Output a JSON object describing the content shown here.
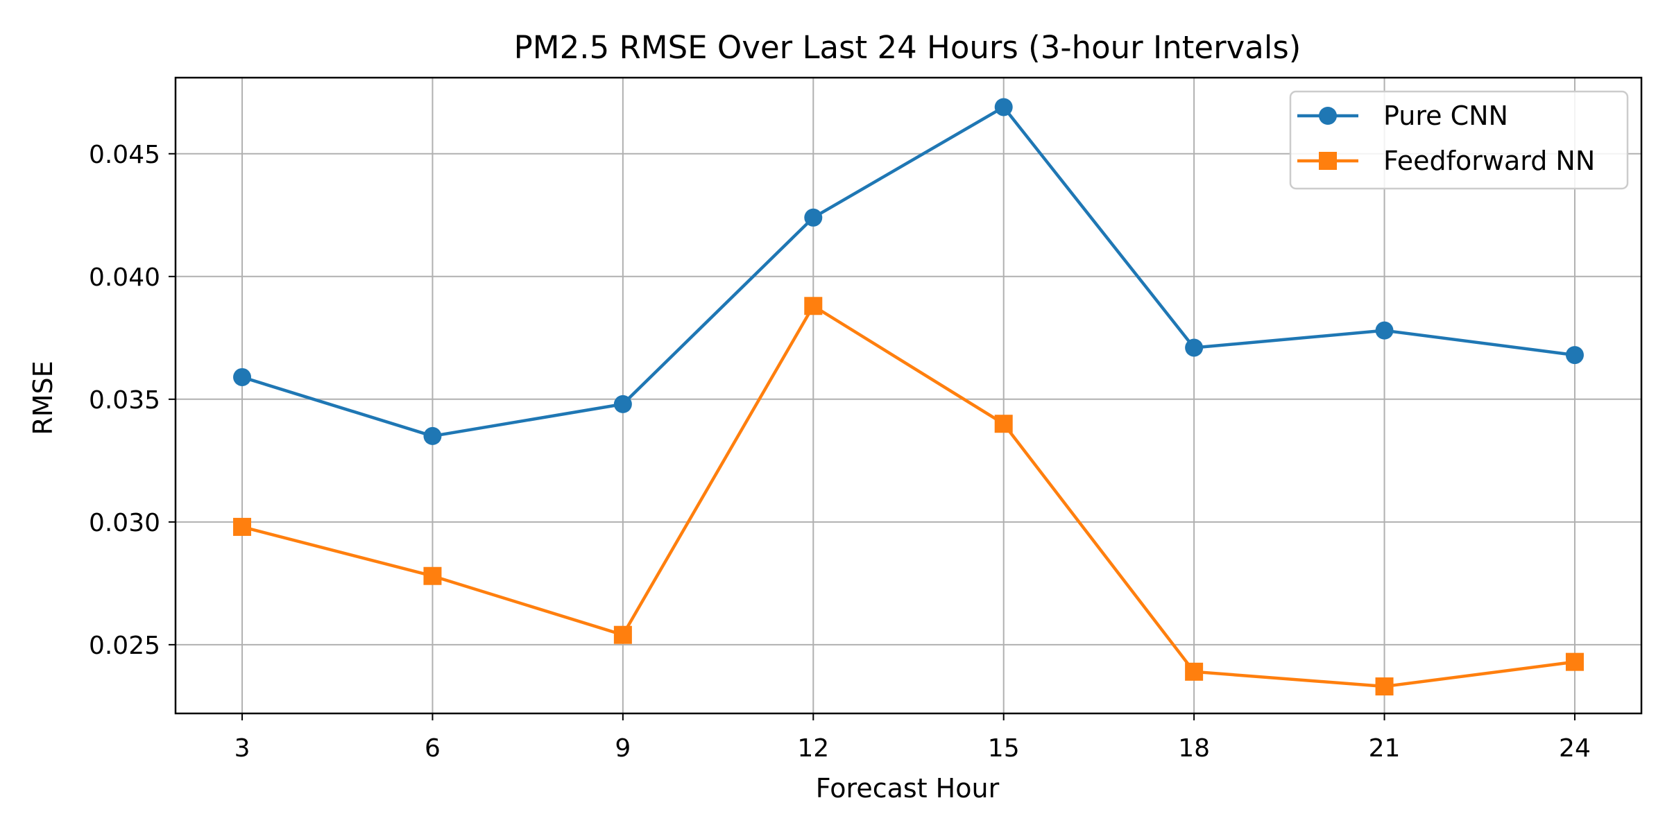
{
  "chart_data": {
    "type": "line",
    "title": "PM2.5 RMSE Over Last 24 Hours (3-hour Intervals)",
    "xlabel": "Forecast Hour",
    "ylabel": "RMSE",
    "x": [
      3,
      6,
      9,
      12,
      15,
      18,
      21,
      24
    ],
    "x_tick_labels": [
      "3",
      "6",
      "9",
      "12",
      "15",
      "18",
      "21",
      "24"
    ],
    "xlim": [
      1.95,
      25.05
    ],
    "ylim": [
      0.0222,
      0.0481
    ],
    "y_ticks": [
      0.025,
      0.03,
      0.035,
      0.04,
      0.045
    ],
    "y_tick_labels": [
      "0.025",
      "0.030",
      "0.035",
      "0.040",
      "0.045"
    ],
    "grid": true,
    "legend_position": "top-right",
    "series": [
      {
        "name": "Pure CNN",
        "color": "#1f77b4",
        "marker": "circle",
        "values": [
          0.0359,
          0.0335,
          0.0348,
          0.0424,
          0.0469,
          0.0371,
          0.0378,
          0.0368
        ]
      },
      {
        "name": "Feedforward NN",
        "color": "#ff7f0e",
        "marker": "square",
        "values": [
          0.0298,
          0.0278,
          0.0254,
          0.0388,
          0.034,
          0.0239,
          0.0233,
          0.0243
        ]
      }
    ]
  }
}
